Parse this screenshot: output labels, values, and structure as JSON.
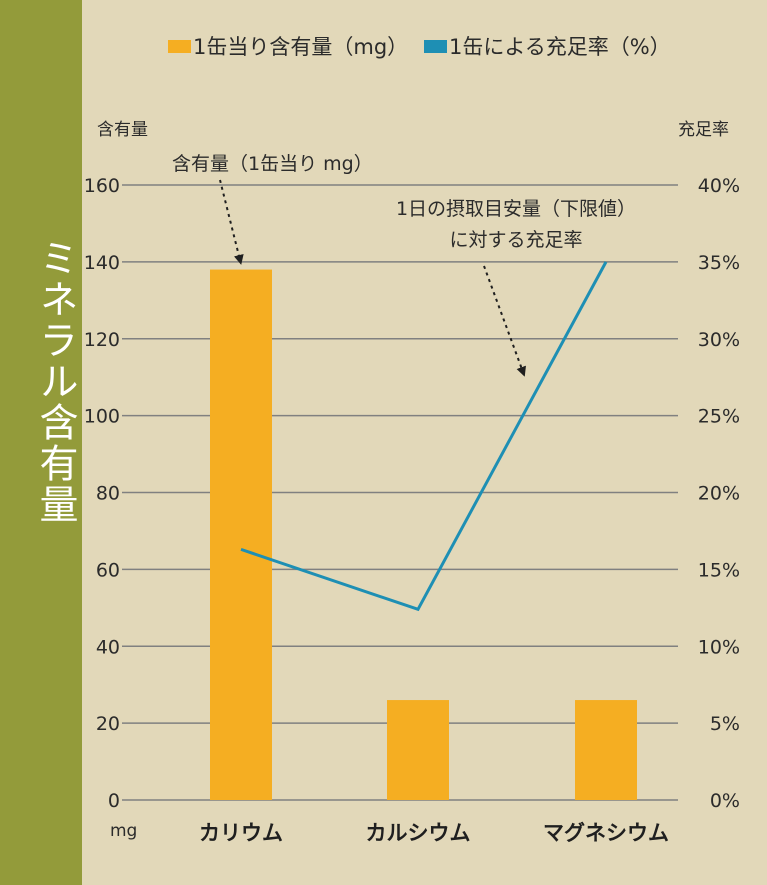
{
  "sidebar": {
    "title": "ミネラル含有量"
  },
  "chart_data": {
    "type": "bar+line",
    "categories": [
      "カリウム",
      "カルシウム",
      "マグネシウム"
    ],
    "series": [
      {
        "name": "1缶当り含有量（mg）",
        "kind": "bar",
        "axis": "left",
        "color": "#f5ae22",
        "values": [
          138,
          26,
          26
        ]
      },
      {
        "name": "1缶による充足率（%）",
        "kind": "line",
        "axis": "right",
        "color": "#1e8fb4",
        "values": [
          16.3,
          12.4,
          35
        ]
      }
    ],
    "left_axis": {
      "label": "含有量",
      "unit": "mg",
      "min": 0,
      "max": 160,
      "ticks": [
        "0",
        "20",
        "40",
        "60",
        "80",
        "100",
        "120",
        "140",
        "160"
      ]
    },
    "right_axis": {
      "label": "充足率",
      "min": 0,
      "max": 40,
      "ticks": [
        "0%",
        "5%",
        "10%",
        "15%",
        "20%",
        "25%",
        "30%",
        "35%",
        "40%"
      ]
    },
    "grid": true,
    "legend_position": "top",
    "annotations": {
      "bar": "含有量（1缶当り mg）",
      "line_line1": "1日の摂取目安量（下限値）",
      "line_line2": "に対する充足率"
    }
  }
}
